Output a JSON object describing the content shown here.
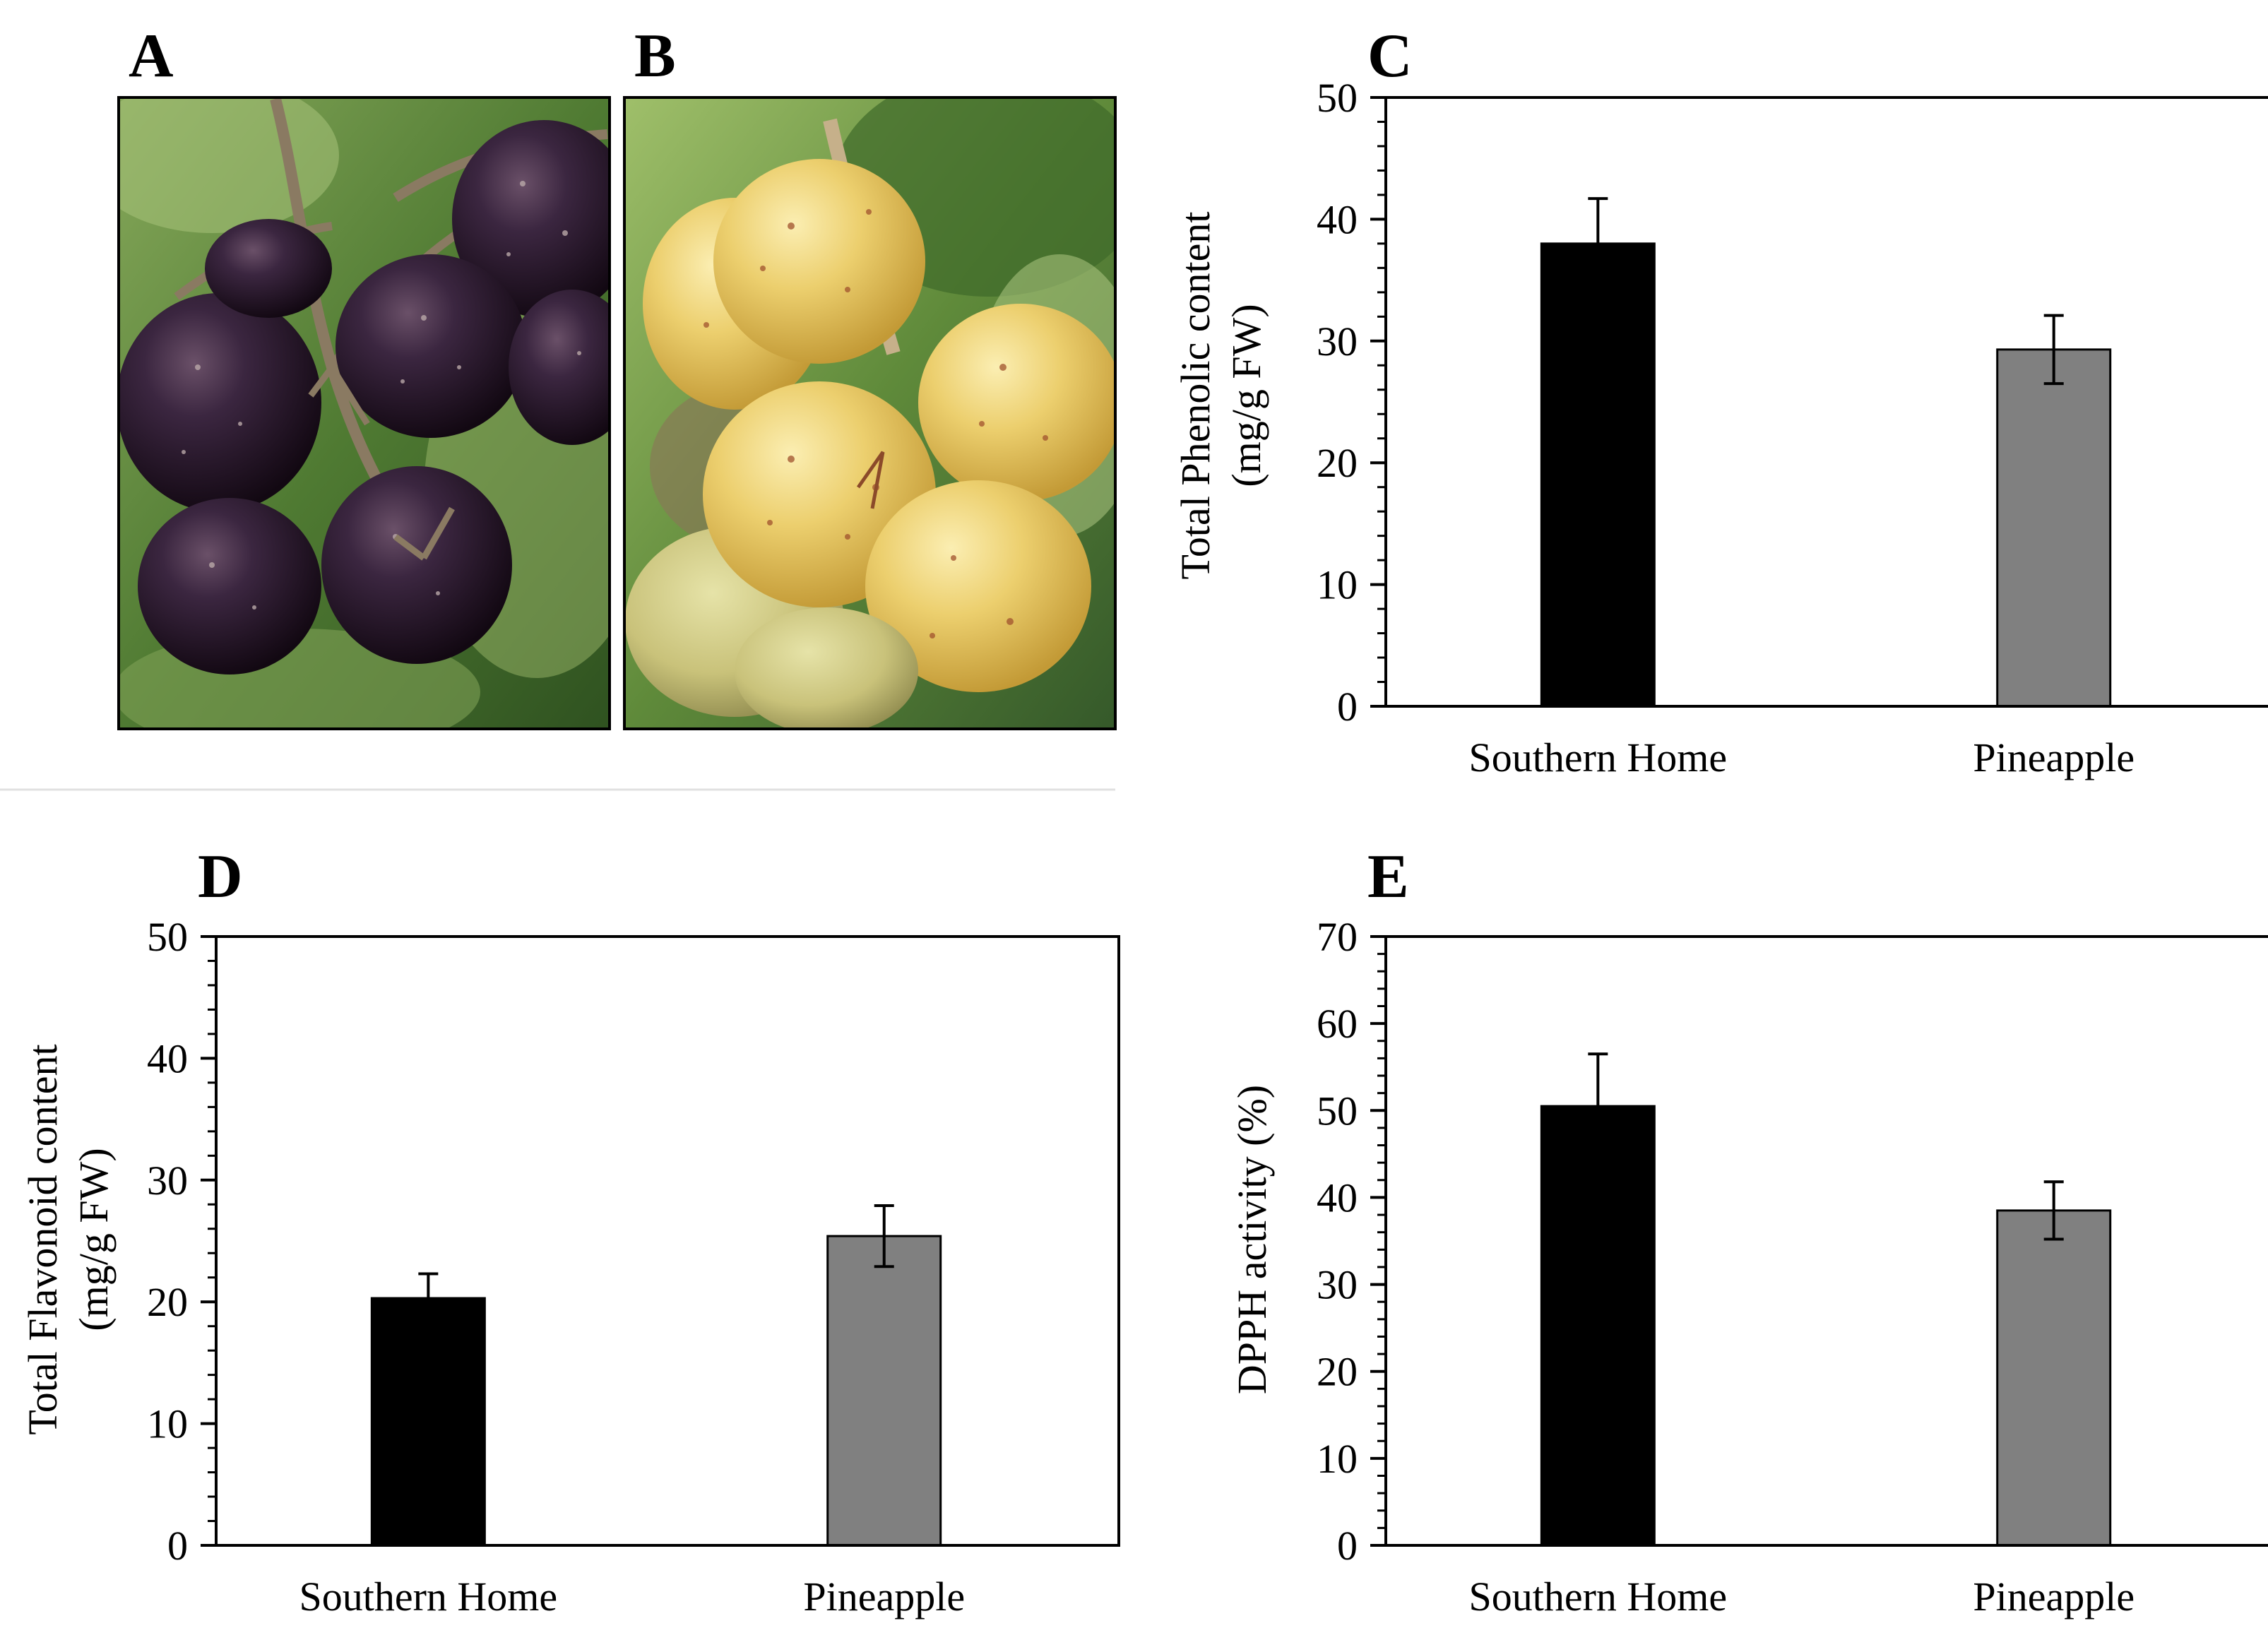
{
  "panels": {
    "A": {
      "letter": "A"
    },
    "B": {
      "letter": "B"
    }
  },
  "colors": {
    "southern_home": "#000000",
    "pineapple": "#808080",
    "black_grape_dark": "#1c1022",
    "black_grape_mid": "#3b2640",
    "yellow_grape_light": "#f2dc8a",
    "yellow_grape_mid": "#dcb64e",
    "leaf_green": "#5f8a3a",
    "stem_brown": "#7a6a55"
  },
  "chart_data": [
    {
      "panel": "C",
      "type": "bar",
      "categories": [
        "Southern Home",
        "Pineapple"
      ],
      "values": [
        38,
        29.3
      ],
      "errors": [
        3.7,
        2.8
      ],
      "ylabel_line1": "Total Phenolic content",
      "ylabel_line2": "(mg/g FW)",
      "ylim": [
        0,
        50
      ],
      "yticks": [
        0,
        10,
        20,
        30,
        40,
        50
      ]
    },
    {
      "panel": "D",
      "type": "bar",
      "categories": [
        "Southern Home",
        "Pineapple"
      ],
      "values": [
        20.3,
        25.4
      ],
      "errors": [
        2.0,
        2.5
      ],
      "ylabel_line1": "Total Flavonoid content",
      "ylabel_line2": "(mg/g FW)",
      "ylim": [
        0,
        50
      ],
      "yticks": [
        0,
        10,
        20,
        30,
        40,
        50
      ]
    },
    {
      "panel": "E",
      "type": "bar",
      "categories": [
        "Southern Home",
        "Pineapple"
      ],
      "values": [
        50.5,
        38.5
      ],
      "errors": [
        6.0,
        3.3
      ],
      "ylabel_line1": "DPPH activity (%)",
      "ylabel_line2": "",
      "ylim": [
        0,
        70
      ],
      "yticks": [
        0,
        10,
        20,
        30,
        40,
        50,
        60,
        70
      ]
    }
  ]
}
